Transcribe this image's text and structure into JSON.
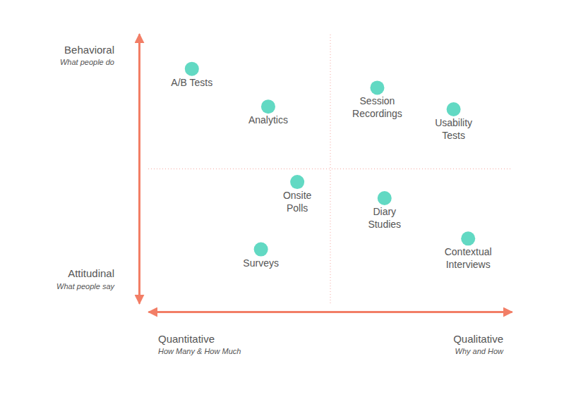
{
  "chart_data": {
    "type": "scatter",
    "x": [
      1.2,
      3.3,
      6.3,
      8.4,
      4.1,
      6.5,
      8.8,
      3.1
    ],
    "values": [
      8.7,
      7.3,
      8.0,
      7.2,
      4.5,
      3.9,
      2.4,
      2.0
    ],
    "labels": [
      [
        "A/B Tests"
      ],
      [
        "Analytics"
      ],
      [
        "Session",
        "Recordings"
      ],
      [
        "Usability",
        "Tests"
      ],
      [
        "Onsite",
        "Polls"
      ],
      [
        "Diary",
        "Studies"
      ],
      [
        "Contextual",
        "Interviews"
      ],
      [
        "Surveys"
      ]
    ],
    "color": "#62d9c3",
    "xlim": [
      0,
      10
    ],
    "ylim": [
      0,
      10
    ],
    "xticks": [
      5
    ],
    "yticks": [
      5
    ],
    "grid": true,
    "tick_labels": false,
    "x_ends": [
      {
        "label": "Quantitative",
        "note": "How Many & How Much"
      },
      {
        "label": "Qualitative",
        "note": "Why and How"
      }
    ],
    "y_ends": [
      {
        "label": "Attitudinal",
        "note": "What people say"
      },
      {
        "label": "Behavioral",
        "note": "What people do"
      }
    ]
  }
}
